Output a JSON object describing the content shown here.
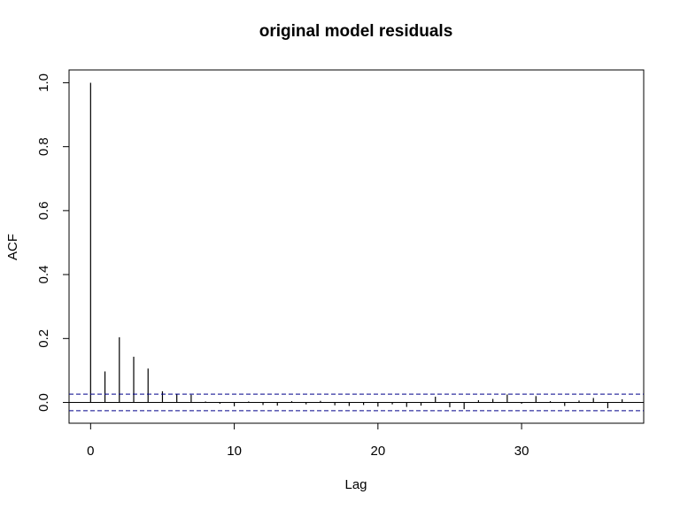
{
  "chart_data": {
    "type": "bar",
    "title": "original model residuals",
    "xlabel": "Lag",
    "ylabel": "ACF",
    "xlim": [
      -1.5,
      38.5
    ],
    "ylim": [
      -0.065,
      1.04
    ],
    "x_ticks": [
      0,
      10,
      20,
      30
    ],
    "x_tick_labels": [
      "0",
      "10",
      "20",
      "30"
    ],
    "y_ticks": [
      0.0,
      0.2,
      0.4,
      0.6,
      0.8,
      1.0
    ],
    "y_tick_labels": [
      "0.0",
      "0.2",
      "0.4",
      "0.6",
      "0.8",
      "1.0"
    ],
    "confidence_bound": 0.026,
    "grid": false,
    "x": [
      0,
      1,
      2,
      3,
      4,
      5,
      6,
      7,
      8,
      9,
      10,
      11,
      12,
      13,
      14,
      15,
      16,
      17,
      18,
      19,
      20,
      21,
      22,
      23,
      24,
      25,
      26,
      27,
      28,
      29,
      30,
      31,
      32,
      33,
      34,
      35,
      36,
      37
    ],
    "values": [
      1.0,
      0.097,
      0.204,
      0.143,
      0.106,
      0.035,
      0.026,
      0.024,
      0.003,
      -0.004,
      -0.012,
      0.003,
      -0.008,
      -0.01,
      0.004,
      -0.006,
      0.005,
      -0.009,
      -0.011,
      -0.008,
      -0.013,
      -0.006,
      -0.014,
      -0.01,
      0.018,
      -0.015,
      -0.021,
      0.007,
      0.011,
      0.025,
      -0.004,
      0.02,
      0.004,
      -0.011,
      0.006,
      0.014,
      -0.018,
      0.01
    ],
    "colors": {
      "bars": "#000000",
      "confidence": "#00008b",
      "axes": "#000000"
    }
  }
}
